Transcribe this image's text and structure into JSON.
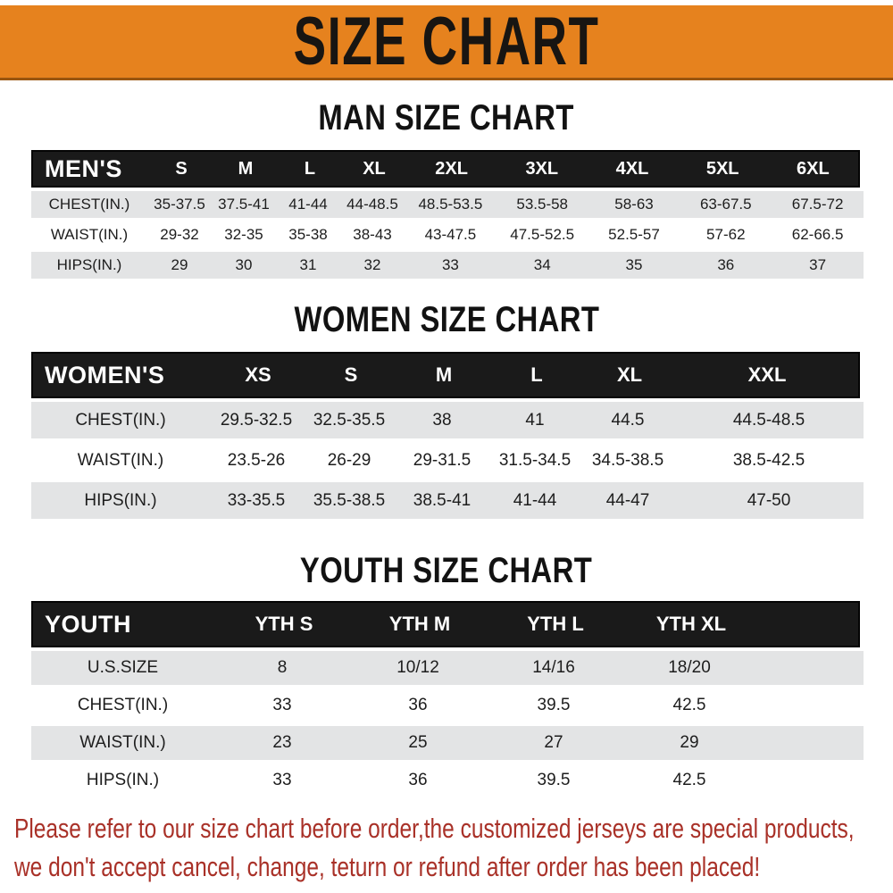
{
  "banner": {
    "title": "SIZE CHART"
  },
  "colors": {
    "banner_orange": "#E6821E",
    "header_black": "#1a1a1a",
    "row_gray": "#E3E4E5",
    "note_red": "#A93128",
    "banner_text": "#181512"
  },
  "chart_data": [
    {
      "type": "table",
      "title": "MAN SIZE CHART",
      "header": [
        "MEN'S",
        "S",
        "M",
        "L",
        "XL",
        "2XL",
        "3XL",
        "4XL",
        "5XL",
        "6XL"
      ],
      "rows": [
        [
          "CHEST(IN.)",
          "35-37.5",
          "37.5-41",
          "41-44",
          "44-48.5",
          "48.5-53.5",
          "53.5-58",
          "58-63",
          "63-67.5",
          "67.5-72"
        ],
        [
          "WAIST(IN.)",
          "29-32",
          "32-35",
          "35-38",
          "38-43",
          "43-47.5",
          "47.5-52.5",
          "52.5-57",
          "57-62",
          "62-66.5"
        ],
        [
          "HIPS(IN.)",
          "29",
          "30",
          "31",
          "32",
          "33",
          "34",
          "35",
          "36",
          "37"
        ]
      ]
    },
    {
      "type": "table",
      "title": "WOMEN SIZE CHART",
      "header": [
        "WOMEN'S",
        "XS",
        "S",
        "M",
        "L",
        "XL",
        "XXL"
      ],
      "rows": [
        [
          "CHEST(IN.)",
          "29.5-32.5",
          "32.5-35.5",
          "38",
          "41",
          "44.5",
          "44.5-48.5"
        ],
        [
          "WAIST(IN.)",
          "23.5-26",
          "26-29",
          "29-31.5",
          "31.5-34.5",
          "34.5-38.5",
          "38.5-42.5"
        ],
        [
          "HIPS(IN.)",
          "33-35.5",
          "35.5-38.5",
          "38.5-41",
          "41-44",
          "44-47",
          "47-50"
        ]
      ]
    },
    {
      "type": "table",
      "title": "YOUTH SIZE CHART",
      "header": [
        "YOUTH",
        "YTH S",
        "YTH M",
        "YTH L",
        "YTH XL"
      ],
      "rows": [
        [
          "U.S.SIZE",
          "8",
          "10/12",
          "14/16",
          "18/20"
        ],
        [
          "CHEST(IN.)",
          "33",
          "36",
          "39.5",
          "42.5"
        ],
        [
          "WAIST(IN.)",
          "23",
          "25",
          "27",
          "29"
        ],
        [
          "HIPS(IN.)",
          "33",
          "36",
          "39.5",
          "42.5"
        ]
      ]
    }
  ],
  "note": {
    "line1": "Please refer to our size chart before order,the customized jerseys are special products,",
    "line2": "we don't accept cancel, change, teturn or refund after order has been placed!"
  }
}
